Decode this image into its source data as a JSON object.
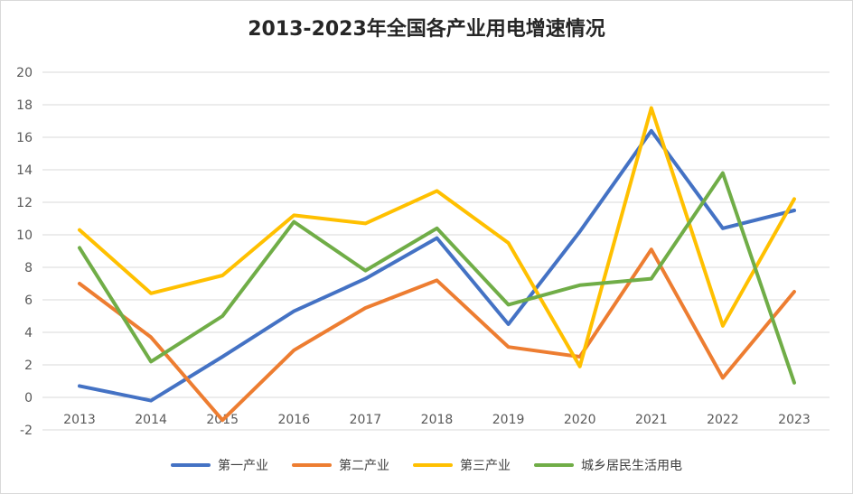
{
  "chart_data": {
    "type": "line",
    "title": "2013-2023年全国各产业用电增速情况",
    "xlabel": "",
    "ylabel": "",
    "categories": [
      "2013",
      "2014",
      "2015",
      "2016",
      "2017",
      "2018",
      "2019",
      "2020",
      "2021",
      "2022",
      "2023"
    ],
    "ylim": [
      -2,
      20
    ],
    "yticks": [
      "20",
      "18",
      "16",
      "14",
      "12",
      "10",
      "8",
      "6",
      "4",
      "2",
      "0",
      "-2"
    ],
    "grid": true,
    "legend_position": "bottom",
    "series": [
      {
        "name": "第一产业",
        "color": "#4472C4",
        "values": [
          0.7,
          -0.2,
          2.5,
          5.3,
          7.3,
          9.8,
          4.5,
          10.2,
          16.4,
          10.4,
          11.5
        ]
      },
      {
        "name": "第二产业",
        "color": "#ED7D31",
        "values": [
          7.0,
          3.7,
          -1.4,
          2.9,
          5.5,
          7.2,
          3.1,
          2.5,
          9.1,
          1.2,
          6.5
        ]
      },
      {
        "name": "第三产业",
        "color": "#FFC000",
        "values": [
          10.3,
          6.4,
          7.5,
          11.2,
          10.7,
          12.7,
          9.5,
          1.9,
          17.8,
          4.4,
          12.2
        ]
      },
      {
        "name": "城乡居民生活用电",
        "color": "#70AD47",
        "values": [
          9.2,
          2.2,
          5.0,
          10.8,
          7.8,
          10.4,
          5.7,
          6.9,
          7.3,
          13.8,
          0.9
        ]
      }
    ]
  }
}
